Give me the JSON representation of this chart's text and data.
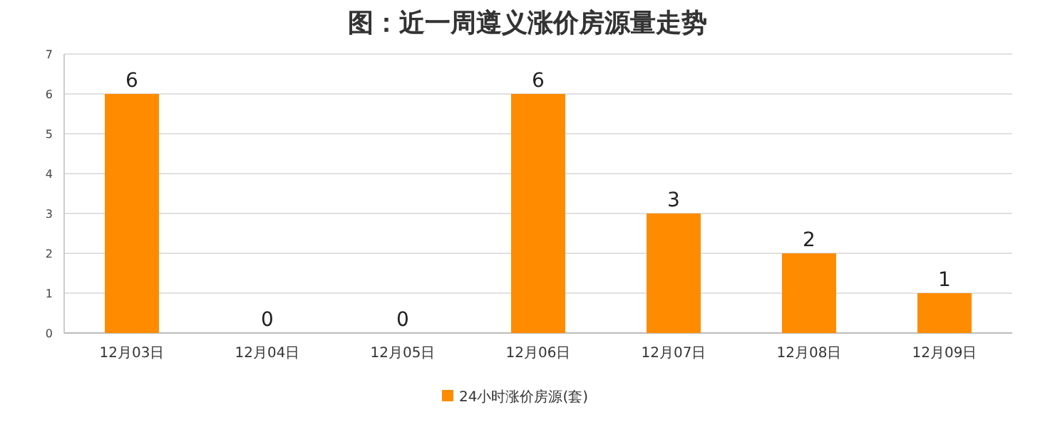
{
  "chart_data": {
    "type": "bar",
    "title": "图：近一周遵义涨价房源量走势",
    "categories": [
      "12月03日",
      "12月04日",
      "12月05日",
      "12月06日",
      "12月07日",
      "12月08日",
      "12月09日"
    ],
    "series": [
      {
        "name": "24小时涨价房源(套)",
        "color": "#ff8c00",
        "values": [
          6,
          0,
          0,
          6,
          3,
          2,
          1
        ]
      }
    ],
    "ylim": [
      0,
      7
    ],
    "yticks": [
      0,
      1,
      2,
      3,
      4,
      5,
      6,
      7
    ],
    "grid": "y",
    "legend": "bottom",
    "data_labels": true
  }
}
